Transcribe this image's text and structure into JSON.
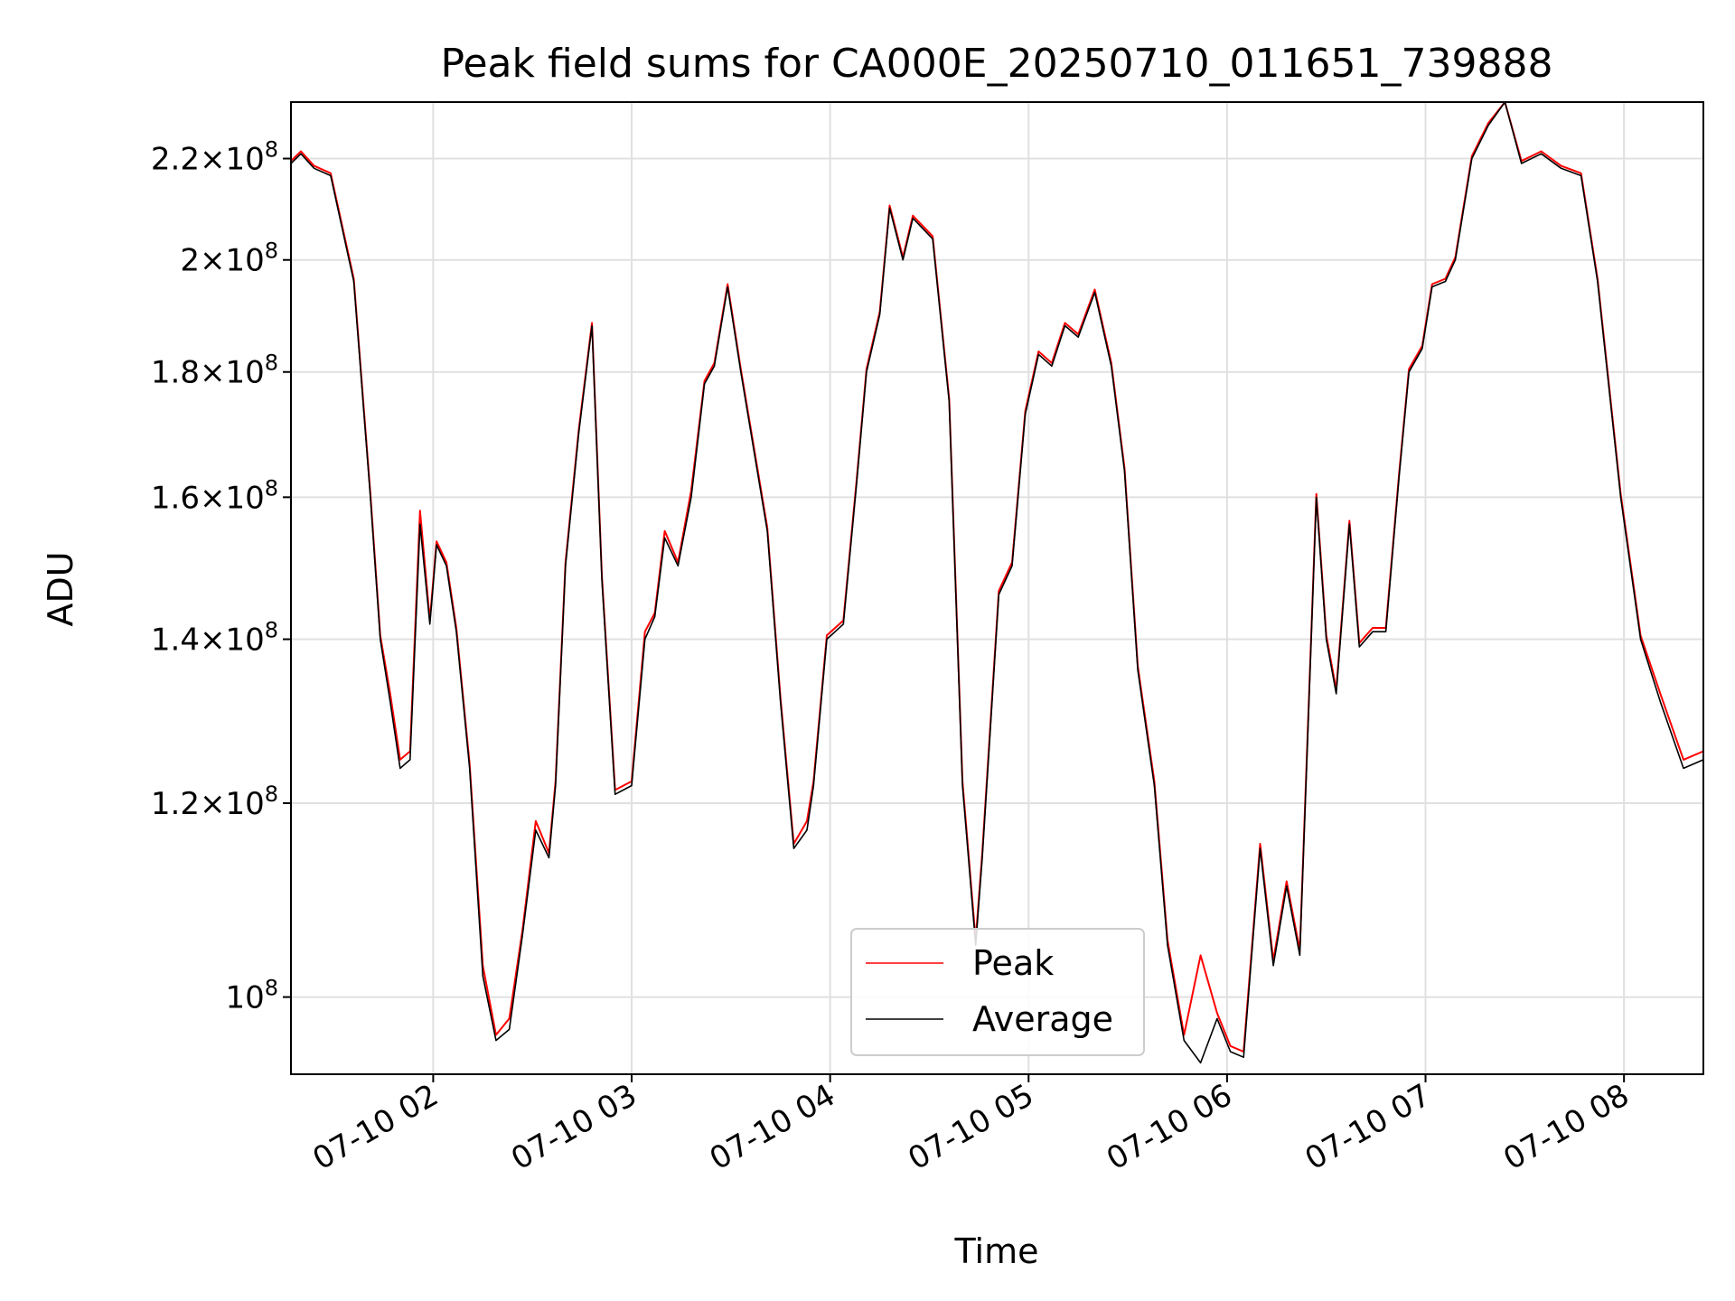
{
  "chart_data": {
    "type": "line",
    "title": "Peak field sums for CA000E_20250710_011651_739888",
    "xlabel": "Time",
    "ylabel": "ADU",
    "y_scale": "log",
    "grid": true,
    "legend_position": "lower center",
    "xlim": [
      "2025-07-10 01:17",
      "2025-07-10 08:24"
    ],
    "ylim": [
      93000000,
      232000000
    ],
    "x_ticks": [
      {
        "value": "2025-07-10 02:00",
        "label": "07-10 02"
      },
      {
        "value": "2025-07-10 03:00",
        "label": "07-10 03"
      },
      {
        "value": "2025-07-10 04:00",
        "label": "07-10 04"
      },
      {
        "value": "2025-07-10 05:00",
        "label": "07-10 05"
      },
      {
        "value": "2025-07-10 06:00",
        "label": "07-10 06"
      },
      {
        "value": "2025-07-10 07:00",
        "label": "07-10 07"
      },
      {
        "value": "2025-07-10 08:00",
        "label": "07-10 08"
      }
    ],
    "y_ticks": [
      {
        "value": 100000000,
        "mantissa": "",
        "exp": "8"
      },
      {
        "value": 120000000,
        "mantissa": "1.2",
        "exp": "8"
      },
      {
        "value": 140000000,
        "mantissa": "1.4",
        "exp": "8"
      },
      {
        "value": 160000000,
        "mantissa": "1.6",
        "exp": "8"
      },
      {
        "value": 180000000,
        "mantissa": "1.8",
        "exp": "8"
      },
      {
        "value": 200000000,
        "mantissa": "2",
        "exp": "8"
      },
      {
        "value": 220000000,
        "mantissa": "2.2",
        "exp": "8"
      }
    ],
    "x": [
      "2025-07-10 01:17",
      "2025-07-10 01:20",
      "2025-07-10 01:24",
      "2025-07-10 01:29",
      "2025-07-10 01:36",
      "2025-07-10 01:41",
      "2025-07-10 01:44",
      "2025-07-10 01:47",
      "2025-07-10 01:50",
      "2025-07-10 01:53",
      "2025-07-10 01:56",
      "2025-07-10 01:59",
      "2025-07-10 02:01",
      "2025-07-10 02:04",
      "2025-07-10 02:07",
      "2025-07-10 02:11",
      "2025-07-10 02:15",
      "2025-07-10 02:19",
      "2025-07-10 02:23",
      "2025-07-10 02:27",
      "2025-07-10 02:31",
      "2025-07-10 02:35",
      "2025-07-10 02:37",
      "2025-07-10 02:40",
      "2025-07-10 02:44",
      "2025-07-10 02:48",
      "2025-07-10 02:51",
      "2025-07-10 02:55",
      "2025-07-10 03:00",
      "2025-07-10 03:04",
      "2025-07-10 03:07",
      "2025-07-10 03:10",
      "2025-07-10 03:14",
      "2025-07-10 03:18",
      "2025-07-10 03:22",
      "2025-07-10 03:25",
      "2025-07-10 03:29",
      "2025-07-10 03:33",
      "2025-07-10 03:37",
      "2025-07-10 03:41",
      "2025-07-10 03:45",
      "2025-07-10 03:49",
      "2025-07-10 03:53",
      "2025-07-10 03:55",
      "2025-07-10 03:59",
      "2025-07-10 04:04",
      "2025-07-10 04:08",
      "2025-07-10 04:11",
      "2025-07-10 04:15",
      "2025-07-10 04:18",
      "2025-07-10 04:22",
      "2025-07-10 04:25",
      "2025-07-10 04:31",
      "2025-07-10 04:36",
      "2025-07-10 04:40",
      "2025-07-10 04:44",
      "2025-07-10 04:46",
      "2025-07-10 04:51",
      "2025-07-10 04:55",
      "2025-07-10 04:59",
      "2025-07-10 05:03",
      "2025-07-10 05:07",
      "2025-07-10 05:11",
      "2025-07-10 05:15",
      "2025-07-10 05:20",
      "2025-07-10 05:25",
      "2025-07-10 05:29",
      "2025-07-10 05:33",
      "2025-07-10 05:38",
      "2025-07-10 05:42",
      "2025-07-10 05:47",
      "2025-07-10 05:52",
      "2025-07-10 05:57",
      "2025-07-10 06:01",
      "2025-07-10 06:05",
      "2025-07-10 06:10",
      "2025-07-10 06:14",
      "2025-07-10 06:18",
      "2025-07-10 06:22",
      "2025-07-10 06:27",
      "2025-07-10 06:30",
      "2025-07-10 06:33",
      "2025-07-10 06:37",
      "2025-07-10 06:40",
      "2025-07-10 06:44",
      "2025-07-10 06:48",
      "2025-07-10 06:52",
      "2025-07-10 06:55",
      "2025-07-10 06:59",
      "2025-07-10 07:02",
      "2025-07-10 07:06",
      "2025-07-10 07:09",
      "2025-07-10 07:14",
      "2025-07-10 07:19",
      "2025-07-10 07:24",
      "2025-07-10 07:29",
      "2025-07-10 07:35",
      "2025-07-10 07:41",
      "2025-07-10 07:47",
      "2025-07-10 07:52",
      "2025-07-10 07:59",
      "2025-07-10 08:05",
      "2025-07-10 08:11",
      "2025-07-10 08:18",
      "2025-07-10 08:24"
    ],
    "series": [
      {
        "name": "Average",
        "color": "#000000",
        "values": [
          219000000,
          221000000,
          218000000,
          216500000,
          196000000,
          160000000,
          140000000,
          132000000,
          124000000,
          125000000,
          156000000,
          142000000,
          153000000,
          150000000,
          141000000,
          124000000,
          102000000,
          96000000,
          97000000,
          106000000,
          117000000,
          114000000,
          122000000,
          150000000,
          170000000,
          188000000,
          148000000,
          121000000,
          122000000,
          140000000,
          143000000,
          154000000,
          150000000,
          160000000,
          178000000,
          181000000,
          195000000,
          180000000,
          167000000,
          155000000,
          132000000,
          115000000,
          117000000,
          122000000,
          140000000,
          142000000,
          162000000,
          180000000,
          190000000,
          210000000,
          200000000,
          208000000,
          204000000,
          175000000,
          122000000,
          105000000,
          114000000,
          146000000,
          150000000,
          173000000,
          183000000,
          181000000,
          188000000,
          186000000,
          194000000,
          181000000,
          164000000,
          136000000,
          122000000,
          105000000,
          96000000,
          94000000,
          98000000,
          95000000,
          94500000,
          115000000,
          103000000,
          111000000,
          104000000,
          160000000,
          140000000,
          133000000,
          156000000,
          139000000,
          141000000,
          141000000,
          163000000,
          180000000,
          184000000,
          195000000,
          196000000,
          200000000,
          220000000,
          227000000,
          232000000,
          219000000,
          221000000,
          218000000,
          216500000,
          196000000,
          160000000,
          140000000,
          132000000,
          124000000,
          125000000
        ]
      },
      {
        "name": "Peak",
        "color": "#ff0000",
        "values": [
          219500000,
          221500000,
          218500000,
          217000000,
          196500000,
          160500000,
          140500000,
          133000000,
          125000000,
          126000000,
          158000000,
          142500000,
          153500000,
          150500000,
          141500000,
          124500000,
          103000000,
          96500000,
          98000000,
          106500000,
          118000000,
          114500000,
          122500000,
          150500000,
          170500000,
          188500000,
          148500000,
          121500000,
          122500000,
          141000000,
          143500000,
          155000000,
          150500000,
          161000000,
          178500000,
          181500000,
          195500000,
          180500000,
          167500000,
          155500000,
          132500000,
          115500000,
          118000000,
          122500000,
          140500000,
          142500000,
          162500000,
          180500000,
          190500000,
          210500000,
          200500000,
          208500000,
          204500000,
          175500000,
          122500000,
          105500000,
          114500000,
          146500000,
          150500000,
          173500000,
          183500000,
          181500000,
          188500000,
          186500000,
          194500000,
          181500000,
          164500000,
          136500000,
          122500000,
          105500000,
          96500000,
          104000000,
          98500000,
          95500000,
          95000000,
          115500000,
          103500000,
          111500000,
          104500000,
          160500000,
          140500000,
          133500000,
          156500000,
          139500000,
          141500000,
          141500000,
          163500000,
          180500000,
          184500000,
          195500000,
          196500000,
          200500000,
          220500000,
          227500000,
          232000000,
          219500000,
          221500000,
          218500000,
          217000000,
          196500000,
          160500000,
          140500000,
          133000000,
          125000000,
          126000000
        ]
      }
    ]
  }
}
